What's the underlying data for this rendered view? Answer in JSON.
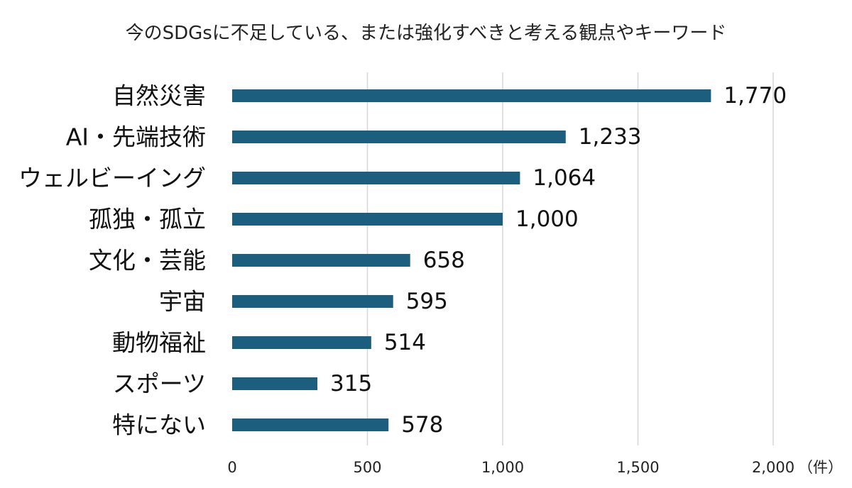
{
  "chart_data": {
    "type": "bar",
    "orientation": "horizontal",
    "title": "今のSDGsに不足している、または強化すべきと考える観点やキーワード",
    "categories": [
      "自然災害",
      "AI・先端技術",
      "ウェルビーイング",
      "孤独・孤立",
      "文化・芸能",
      "宇宙",
      "動物福祉",
      "スポーツ",
      "特にない"
    ],
    "values": [
      1770,
      1233,
      1064,
      1000,
      658,
      595,
      514,
      315,
      578
    ],
    "value_labels": [
      "1,770",
      "1,233",
      "1,064",
      "1,000",
      "658",
      "595",
      "514",
      "315",
      "578"
    ],
    "x_ticks": [
      0,
      500,
      1000,
      1500,
      2000
    ],
    "x_tick_labels": [
      "0",
      "500",
      "1,000",
      "1,500",
      "2,000"
    ],
    "x_unit_label": "（件）",
    "xlim": [
      0,
      2000
    ],
    "grid": "vertical",
    "legend": "none",
    "bar_color": "#1b5e7e"
  }
}
